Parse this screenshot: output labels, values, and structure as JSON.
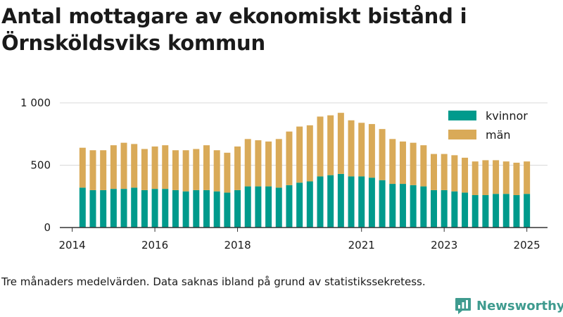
{
  "title": "Antal mottagare av ekonomiskt bistånd i Örnsköldsviks kommun",
  "footnote": "Tre månaders medelvärden. Data saknas ibland på grund av statistikssekretess.",
  "brand": "Newsworthy",
  "colors": {
    "kvinnor": "#009a8c",
    "man": "#d9aa58",
    "axis": "#333333",
    "grid": "#d9d9d9",
    "brand": "#3f9b8f"
  },
  "chart_data": {
    "type": "bar",
    "stacked": true,
    "xlim": [
      2013.7,
      2025.5
    ],
    "ylim": [
      0,
      1000
    ],
    "yticks": [
      0,
      500,
      1000
    ],
    "ytick_labels": [
      "0",
      "500",
      "1 000"
    ],
    "xticks": [
      2014,
      2016,
      2018,
      2021,
      2023,
      2025
    ],
    "xtick_labels": [
      "2014",
      "2016",
      "2018",
      "2021",
      "2023",
      "2025"
    ],
    "legend_position": "top-right",
    "grid": "horizontal",
    "x": [
      2014.25,
      2014.5,
      2014.75,
      2015.0,
      2015.25,
      2015.5,
      2015.75,
      2016.0,
      2016.25,
      2016.5,
      2016.75,
      2017.0,
      2017.25,
      2017.5,
      2017.75,
      2018.0,
      2018.25,
      2018.5,
      2018.75,
      2019.0,
      2019.25,
      2019.5,
      2019.75,
      2020.0,
      2020.25,
      2020.5,
      2020.75,
      2021.0,
      2021.25,
      2021.5,
      2021.75,
      2022.0,
      2022.25,
      2022.5,
      2022.75,
      2023.0,
      2023.25,
      2023.5,
      2023.75,
      2024.0,
      2024.25,
      2024.5,
      2024.75,
      2025.0
    ],
    "series": [
      {
        "name": "kvinnor",
        "values": [
          320,
          300,
          300,
          310,
          310,
          320,
          300,
          310,
          310,
          300,
          290,
          300,
          300,
          290,
          280,
          300,
          330,
          330,
          330,
          320,
          340,
          360,
          370,
          410,
          420,
          430,
          410,
          410,
          400,
          380,
          350,
          350,
          340,
          330,
          300,
          300,
          290,
          280,
          260,
          260,
          270,
          270,
          260,
          270
        ]
      },
      {
        "name": "män",
        "values": [
          320,
          320,
          320,
          350,
          370,
          350,
          330,
          340,
          350,
          320,
          330,
          330,
          360,
          330,
          320,
          350,
          380,
          370,
          360,
          390,
          430,
          450,
          450,
          480,
          480,
          490,
          450,
          430,
          430,
          410,
          360,
          340,
          340,
          330,
          290,
          290,
          290,
          280,
          270,
          280,
          270,
          260,
          260,
          260
        ]
      }
    ]
  }
}
